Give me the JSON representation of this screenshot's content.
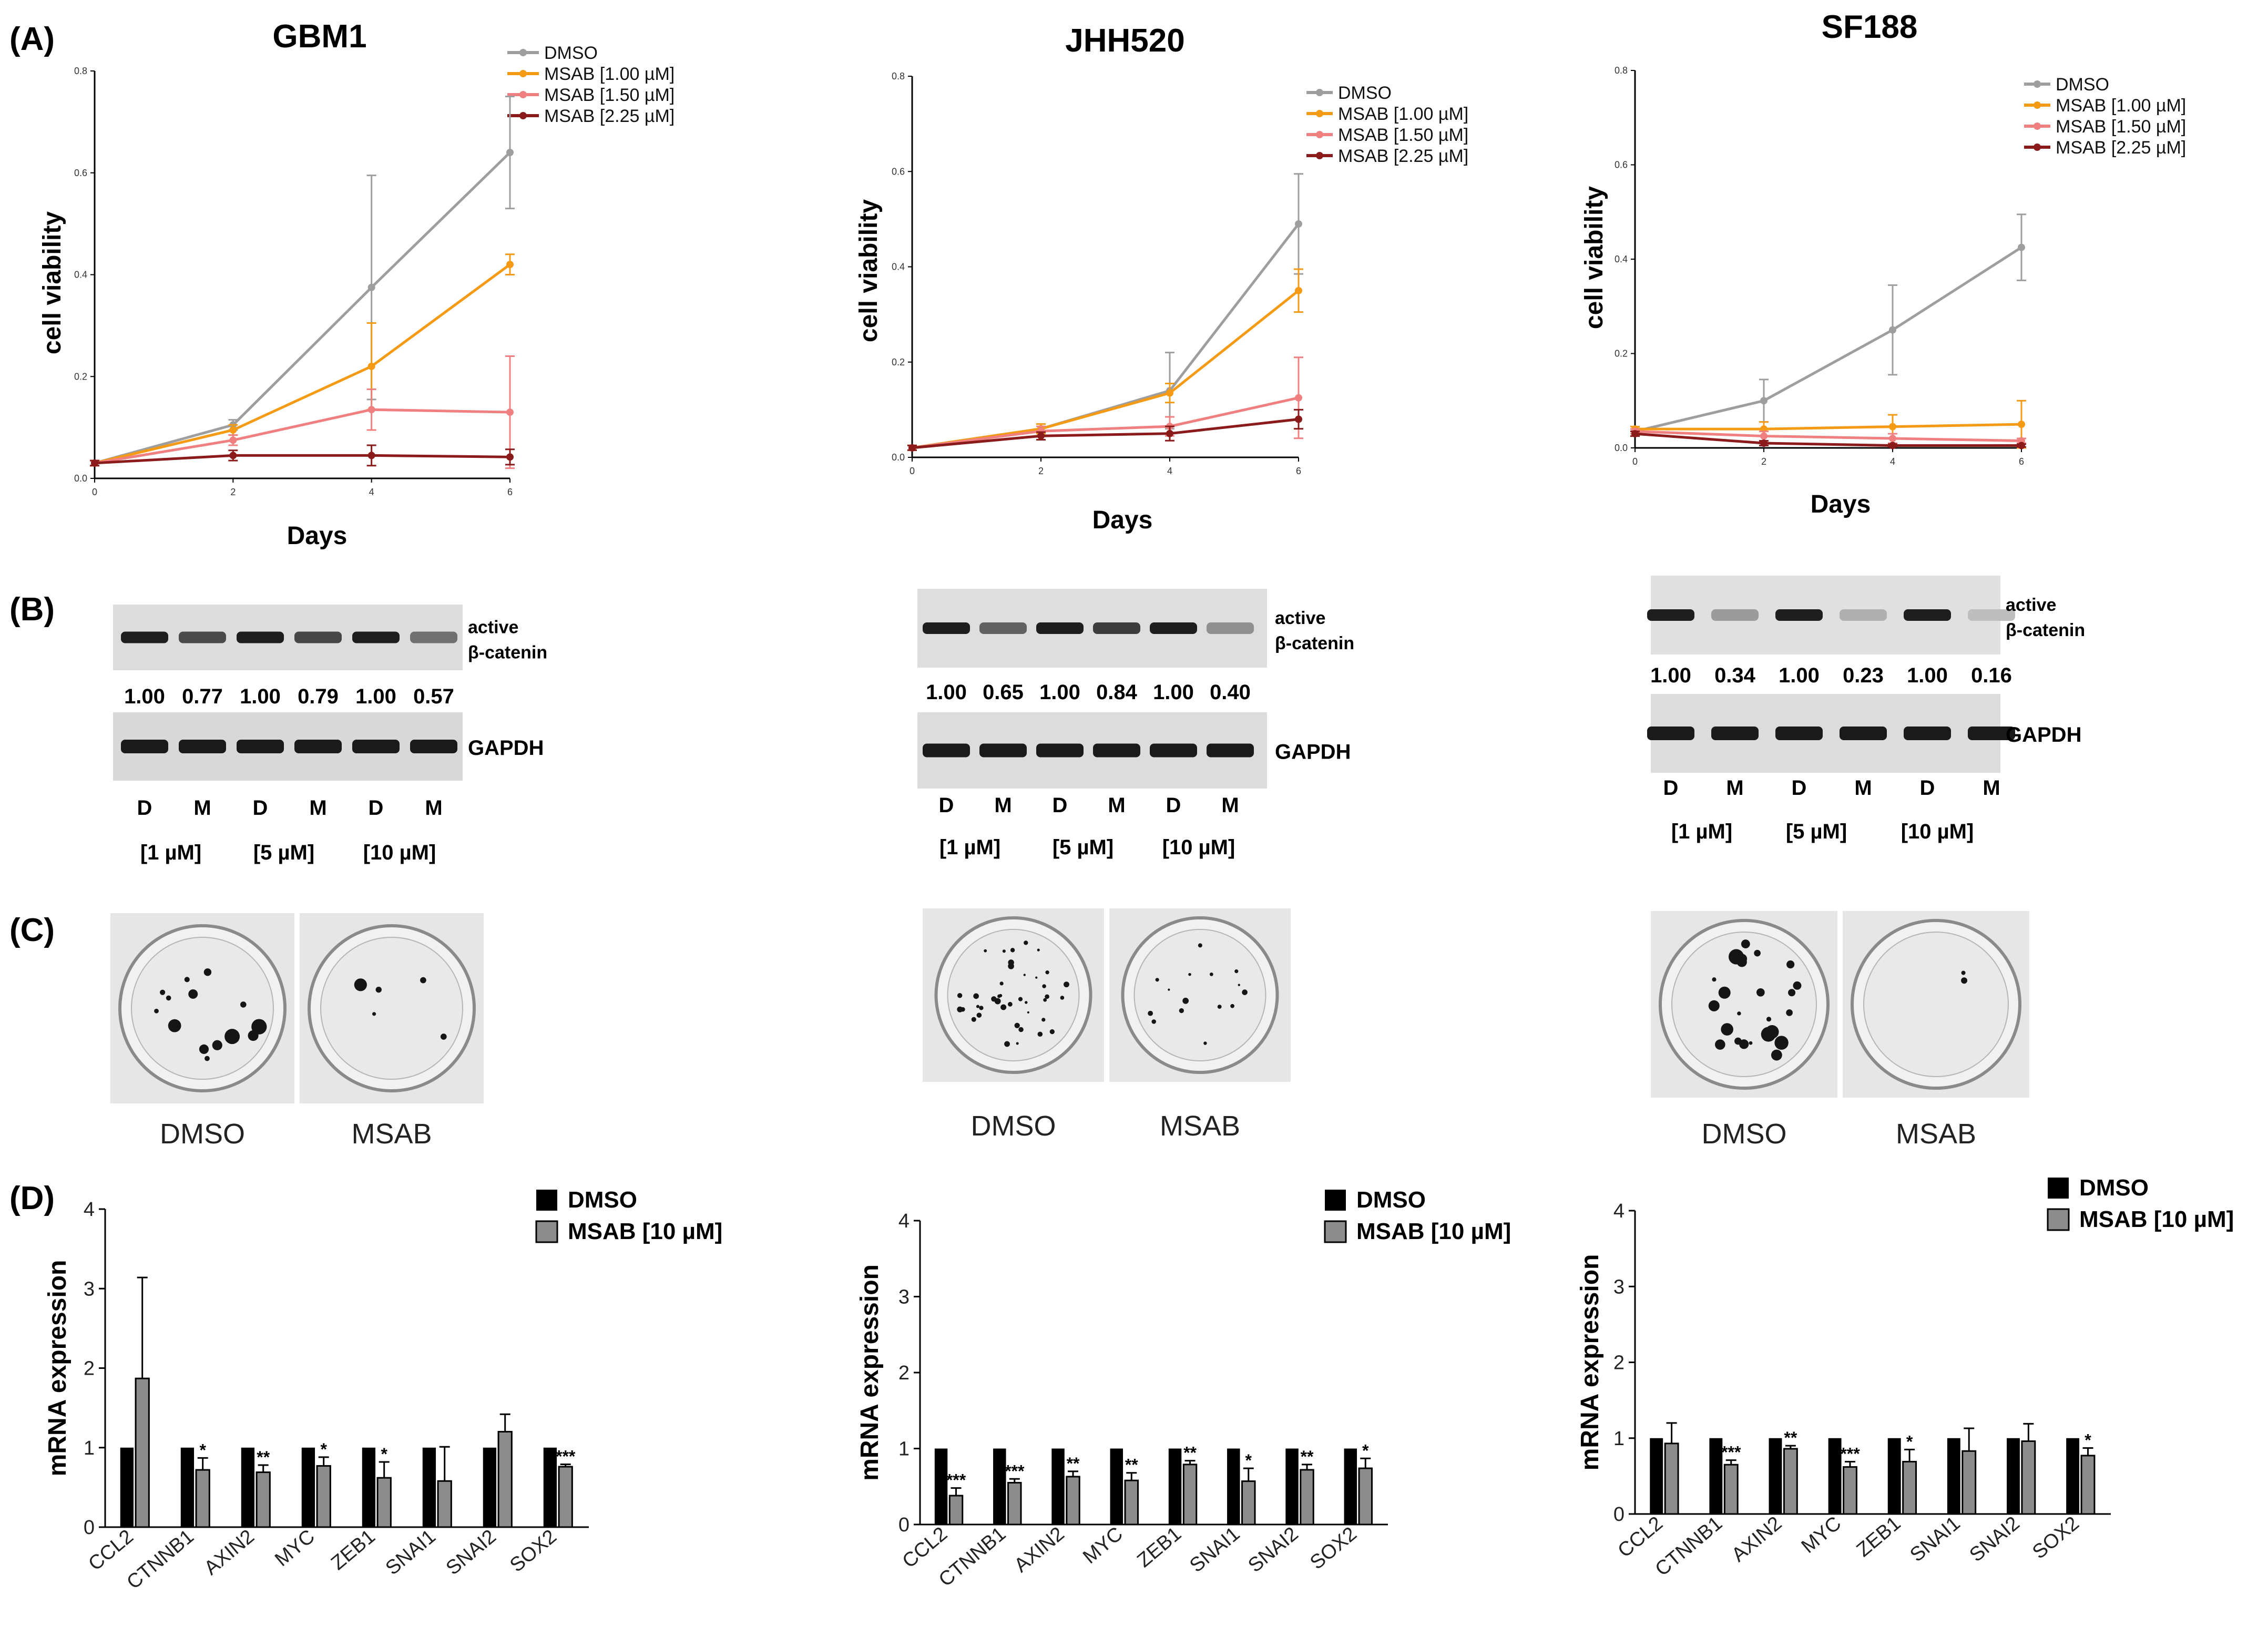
{
  "panel_labels": [
    "(A)",
    "(B)",
    "(C)",
    "(D)"
  ],
  "line_legend": {
    "DMSO": "DMSO",
    "MSAB_100": "MSAB [1.00 µM]",
    "MSAB_150": "MSAB [1.50 µM]",
    "MSAB_225": "MSAB [2.25 µM]"
  },
  "series_colors": {
    "DMSO": "#9e9e9e",
    "MSAB_100": "#f59a14",
    "MSAB_150": "#f08080",
    "MSAB_225": "#8b1a1a"
  },
  "chart_data": [
    {
      "type": "line",
      "id": "line_gbm1",
      "title": "GBM1",
      "xlabel": "Days",
      "ylabel": "cell viability",
      "x": [
        0,
        2,
        4,
        6
      ],
      "xticks": [
        "0",
        "2",
        "4",
        "6"
      ],
      "yticks": [
        "0.0",
        "0.2",
        "0.4",
        "0.6",
        "0.8"
      ],
      "ylim": [
        0,
        0.8
      ],
      "series": [
        {
          "key": "DMSO",
          "name": "DMSO",
          "values": [
            0.03,
            0.105,
            0.375,
            0.64
          ],
          "err": [
            0.005,
            0.01,
            0.22,
            0.11
          ]
        },
        {
          "key": "MSAB_100",
          "name": "MSAB [1.00 µM]",
          "values": [
            0.03,
            0.095,
            0.22,
            0.42
          ],
          "err": [
            0.005,
            0.01,
            0.085,
            0.02
          ]
        },
        {
          "key": "MSAB_150",
          "name": "MSAB [1.50 µM]",
          "values": [
            0.03,
            0.075,
            0.135,
            0.13
          ],
          "err": [
            0.005,
            0.01,
            0.04,
            0.11
          ]
        },
        {
          "key": "MSAB_225",
          "name": "MSAB [2.25 µM]",
          "values": [
            0.03,
            0.045,
            0.045,
            0.042
          ],
          "err": [
            0.005,
            0.01,
            0.02,
            0.015
          ]
        }
      ]
    },
    {
      "type": "line",
      "id": "line_jhh520",
      "title": "JHH520",
      "xlabel": "Days",
      "ylabel": "cell viability",
      "x": [
        0,
        2,
        4,
        6
      ],
      "xticks": [
        "0",
        "2",
        "4",
        "6"
      ],
      "yticks": [
        "0.0",
        "0.2",
        "0.4",
        "0.6",
        "0.8"
      ],
      "ylim": [
        0,
        0.8
      ],
      "series": [
        {
          "key": "DMSO",
          "name": "DMSO",
          "values": [
            0.02,
            0.06,
            0.14,
            0.49
          ],
          "err": [
            0.005,
            0.01,
            0.08,
            0.105
          ]
        },
        {
          "key": "MSAB_100",
          "name": "MSAB [1.00 µM]",
          "values": [
            0.02,
            0.06,
            0.135,
            0.35
          ],
          "err": [
            0.005,
            0.01,
            0.02,
            0.045
          ]
        },
        {
          "key": "MSAB_150",
          "name": "MSAB [1.50 µM]",
          "values": [
            0.02,
            0.055,
            0.065,
            0.125
          ],
          "err": [
            0.005,
            0.01,
            0.02,
            0.085
          ]
        },
        {
          "key": "MSAB_225",
          "name": "MSAB [2.25 µM]",
          "values": [
            0.02,
            0.045,
            0.05,
            0.08
          ],
          "err": [
            0.005,
            0.008,
            0.015,
            0.02
          ]
        }
      ]
    },
    {
      "type": "line",
      "id": "line_sf188",
      "title": "SF188",
      "xlabel": "Days",
      "ylabel": "cell viability",
      "x": [
        0,
        2,
        4,
        6
      ],
      "xticks": [
        "0",
        "2",
        "4",
        "6"
      ],
      "yticks": [
        "0.0",
        "0.2",
        "0.4",
        "0.6",
        "0.8"
      ],
      "ylim": [
        0,
        0.8
      ],
      "series": [
        {
          "key": "DMSO",
          "name": "DMSO",
          "values": [
            0.035,
            0.1,
            0.25,
            0.425
          ],
          "err": [
            0.005,
            0.045,
            0.095,
            0.07
          ]
        },
        {
          "key": "MSAB_100",
          "name": "MSAB [1.00 µM]",
          "values": [
            0.04,
            0.04,
            0.045,
            0.05
          ],
          "err": [
            0.005,
            0.015,
            0.025,
            0.05
          ]
        },
        {
          "key": "MSAB_150",
          "name": "MSAB [1.50 µM]",
          "values": [
            0.035,
            0.025,
            0.02,
            0.015
          ],
          "err": [
            0.005,
            0.01,
            0.01,
            0.005
          ]
        },
        {
          "key": "MSAB_225",
          "name": "MSAB [2.25 µM]",
          "values": [
            0.03,
            0.01,
            0.005,
            0.005
          ],
          "err": [
            0.005,
            0.005,
            0.003,
            0.003
          ]
        }
      ]
    },
    {
      "type": "bar",
      "id": "bar_gbm1",
      "ylabel": "mRNA expression",
      "categories": [
        "CCL2",
        "CTNNB1",
        "AXIN2",
        "MYC",
        "ZEB1",
        "SNAI1",
        "SNAI2",
        "SOX2"
      ],
      "yticks": [
        "0",
        "1",
        "2",
        "3",
        "4"
      ],
      "ylim": [
        0,
        4
      ],
      "legend": [
        "DMSO",
        "MSAB  [10 µM]"
      ],
      "series": [
        {
          "name": "DMSO",
          "values": [
            1,
            1,
            1,
            1,
            1,
            1,
            1,
            1
          ]
        },
        {
          "name": "MSAB  [10 µM]",
          "values": [
            1.87,
            0.72,
            0.69,
            0.77,
            0.62,
            0.58,
            1.2,
            0.76
          ],
          "err": [
            1.27,
            0.15,
            0.09,
            0.11,
            0.2,
            0.43,
            0.22,
            0.03
          ]
        }
      ],
      "significance": [
        "",
        "*",
        "**",
        "*",
        "*",
        "",
        "",
        "***"
      ]
    },
    {
      "type": "bar",
      "id": "bar_jhh520",
      "ylabel": "mRNA expression",
      "categories": [
        "CCL2",
        "CTNNB1",
        "AXIN2",
        "MYC",
        "ZEB1",
        "SNAI1",
        "SNAI2",
        "SOX2"
      ],
      "yticks": [
        "0",
        "1",
        "2",
        "3",
        "4"
      ],
      "ylim": [
        0,
        4
      ],
      "legend": [
        "DMSO",
        "MSAB  [10 µM]"
      ],
      "series": [
        {
          "name": "DMSO",
          "values": [
            1,
            1,
            1,
            1,
            1,
            1,
            1,
            1
          ]
        },
        {
          "name": "MSAB  [10 µM]",
          "values": [
            0.38,
            0.55,
            0.63,
            0.58,
            0.79,
            0.57,
            0.72,
            0.74
          ],
          "err": [
            0.1,
            0.05,
            0.07,
            0.1,
            0.05,
            0.17,
            0.07,
            0.13
          ]
        }
      ],
      "significance": [
        "***",
        "***",
        "**",
        "**",
        "**",
        "*",
        "**",
        "*"
      ]
    },
    {
      "type": "bar",
      "id": "bar_sf188",
      "ylabel": "mRNA expression",
      "categories": [
        "CCL2",
        "CTNNB1",
        "AXIN2",
        "MYC",
        "ZEB1",
        "SNAI1",
        "SNAI2",
        "SOX2"
      ],
      "yticks": [
        "0",
        "1",
        "2",
        "3",
        "4"
      ],
      "ylim": [
        0,
        4
      ],
      "legend": [
        "DMSO",
        "MSAB [10 µM]"
      ],
      "series": [
        {
          "name": "DMSO",
          "values": [
            1,
            1,
            1,
            1,
            1,
            1,
            1,
            1
          ]
        },
        {
          "name": "MSAB [10 µM]",
          "values": [
            0.93,
            0.65,
            0.86,
            0.62,
            0.69,
            0.83,
            0.96,
            0.77
          ],
          "err": [
            0.27,
            0.06,
            0.04,
            0.07,
            0.16,
            0.3,
            0.23,
            0.1
          ]
        }
      ],
      "significance": [
        "",
        "***",
        "**",
        "***",
        "*",
        "",
        "",
        "*"
      ]
    }
  ],
  "western_blots": [
    {
      "id": "wb_gbm1",
      "ratios": [
        "1.00",
        "0.77",
        "1.00",
        "0.79",
        "1.00",
        "0.57"
      ],
      "active_label_1": "active",
      "active_label_2": "β-catenin",
      "gapdh_label": "GAPDH",
      "lanes": [
        "D",
        "M",
        "D",
        "M",
        "D",
        "M"
      ],
      "concentrations": [
        "[1 µM]",
        "[5 µM]",
        "[10 µM]"
      ]
    },
    {
      "id": "wb_jhh520",
      "ratios": [
        "1.00",
        "0.65",
        "1.00",
        "0.84",
        "1.00",
        "0.40"
      ],
      "active_label_1": "active",
      "active_label_2": "β-catenin",
      "gapdh_label": "GAPDH",
      "lanes": [
        "D",
        "M",
        "D",
        "M",
        "D",
        "M"
      ],
      "concentrations": [
        "[1 µM]",
        "[5 µM]",
        "[10 µM]"
      ]
    },
    {
      "id": "wb_sf188",
      "ratios": [
        "1.00",
        "0.34",
        "1.00",
        "0.23",
        "1.00",
        "0.16"
      ],
      "active_label_1": "active",
      "active_label_2": "β-catenin",
      "gapdh_label": "GAPDH",
      "lanes": [
        "D",
        "M",
        "D",
        "M",
        "D",
        "M"
      ],
      "concentrations": [
        "[1 µM]",
        "[5 µM]",
        "[10 µM]"
      ]
    }
  ],
  "colony_labels": {
    "dmso": "DMSO",
    "msab": "MSAB"
  }
}
